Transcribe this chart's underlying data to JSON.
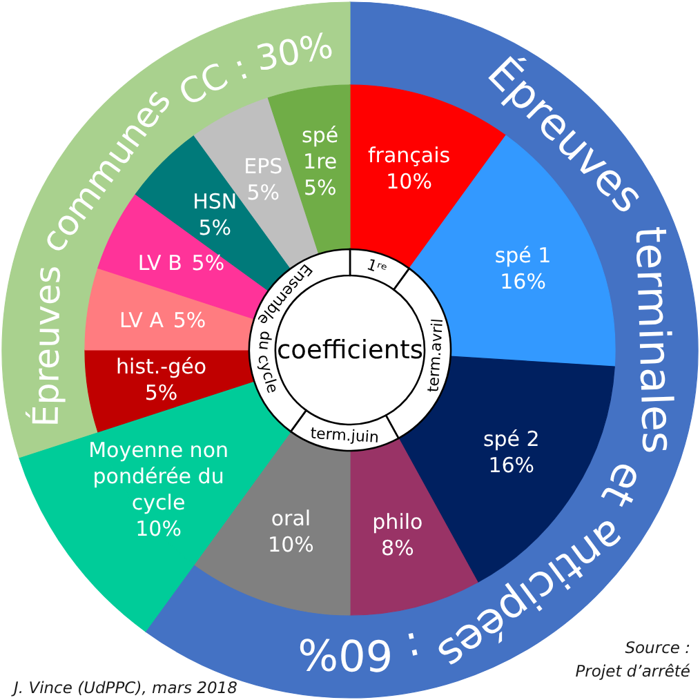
{
  "chart_data": {
    "type": "donut",
    "title": "coefficients",
    "categories": [
      "français",
      "spé 1",
      "spé 2",
      "philo",
      "oral",
      "Moyenne non pondérée du cycle",
      "hist.-géo",
      "LV A",
      "LV B",
      "HSN",
      "EPS",
      "spé 1re"
    ],
    "series": [
      {
        "values": [
          10,
          16,
          16,
          8,
          10,
          10,
          5,
          5,
          5,
          5,
          5,
          5
        ],
        "value_labels": [
          "10%",
          "16%",
          "16%",
          "8%",
          "10%",
          "10%",
          "5%",
          "5%",
          "5%",
          "5%",
          "5%",
          "5%"
        ],
        "colors": [
          "#ff0000",
          "#3399ff",
          "#002060",
          "#993366",
          "#808080",
          "#00cc99",
          "#c00000",
          "#ff7c80",
          "#ff3399",
          "#007a7a",
          "#bfbfbf",
          "#70ad47"
        ]
      },
      {
        "x": [
          null,
          null,
          null,
          null
        ],
        "values": [
          10,
          32,
          18,
          40
        ],
        "colors": [
          "#ffffff",
          "#ffffff",
          "#ffffff",
          "#ffffff"
        ]
      },
      {
        "x": [
          null,
          null,
          null
        ],
        "values": [
          60,
          10,
          30
        ],
        "value_labels": [
          "Épreuves terminales et anticipées : 60%",
          null,
          "Épreuves communes CC : 30%"
        ],
        "colors": [
          "#4472c4",
          "#00cc99",
          "#a9d18e"
        ]
      }
    ],
    "annotations": [
      "1ʳᵉ",
      "term.avril",
      "term.juin",
      "Ensemble du cycle",
      "J. Vince (UdPPC), mars 2018",
      "Source :",
      "Projet d’arrêté"
    ]
  }
}
